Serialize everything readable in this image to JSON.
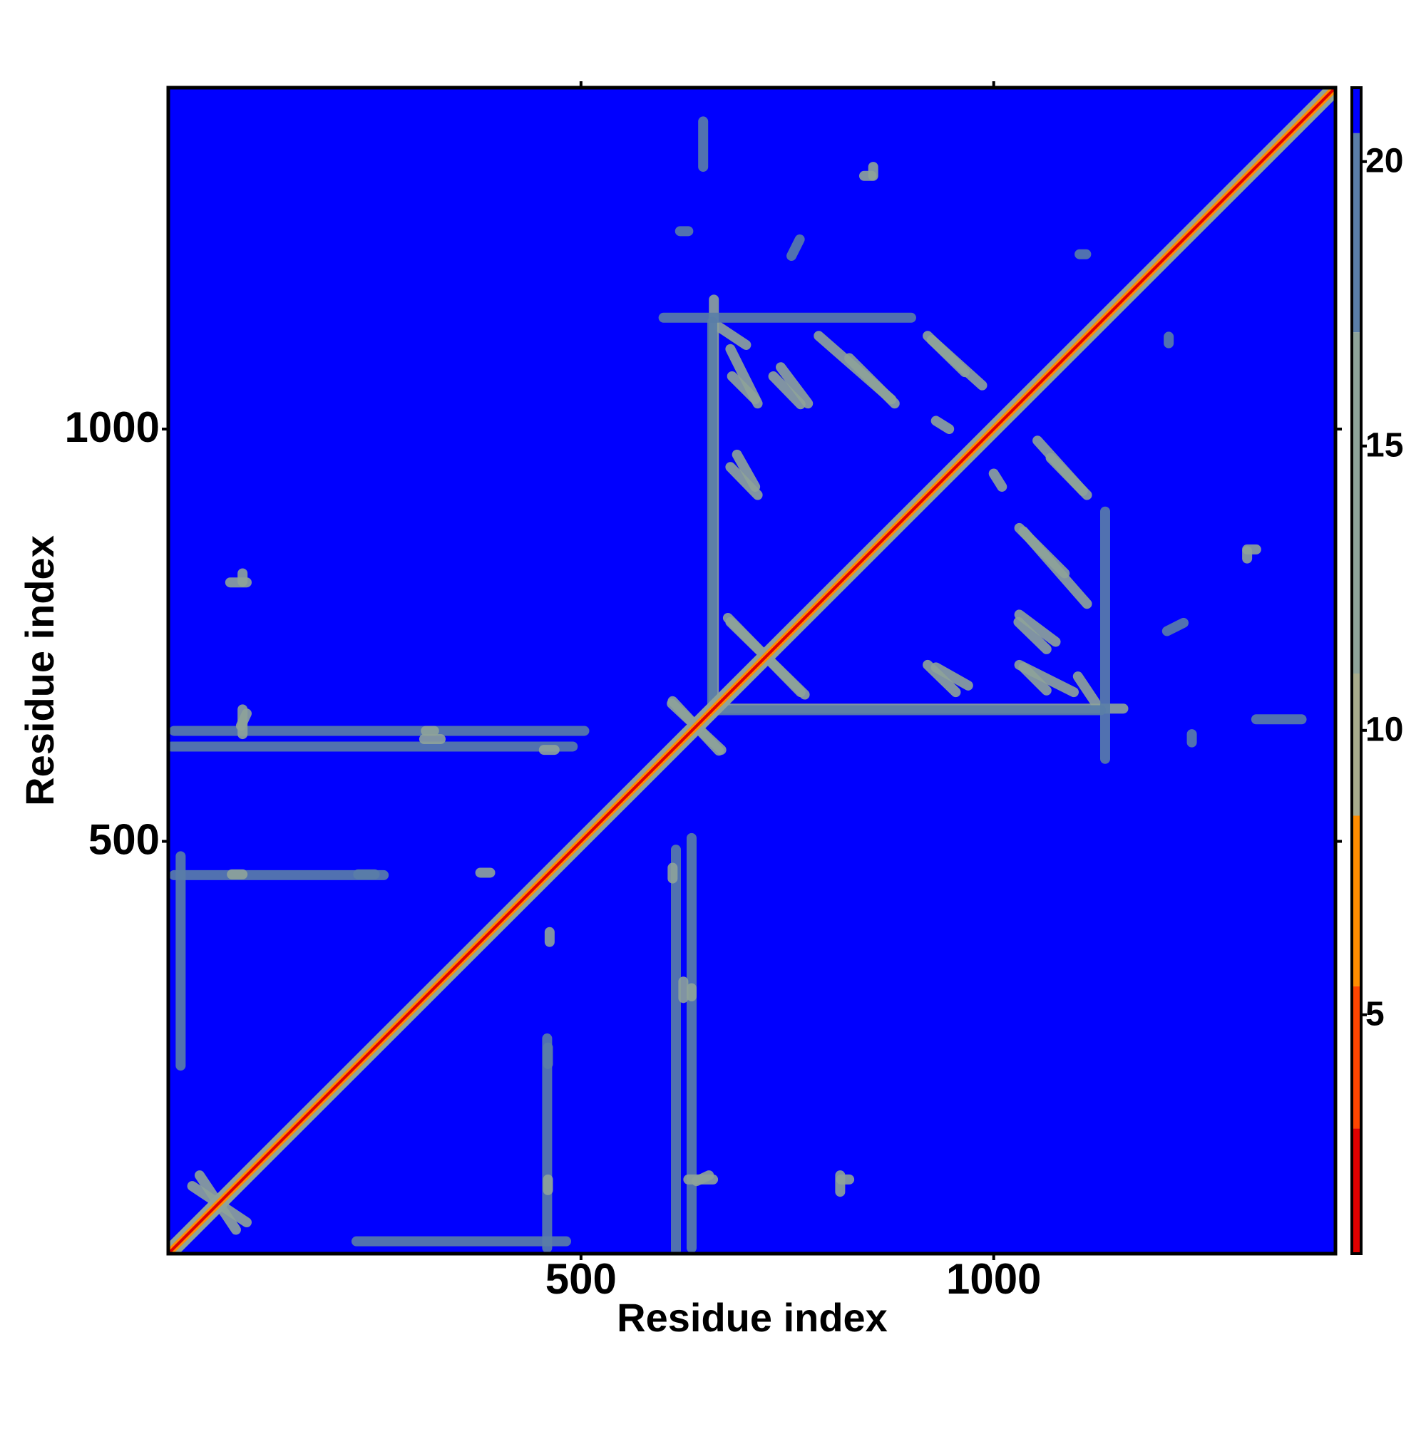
{
  "chart_data": {
    "type": "heatmap",
    "x_label": "Residue index",
    "y_label": "Residue index",
    "xlim": [
      0,
      1414
    ],
    "ylim": [
      0,
      1414
    ],
    "xticks": [
      500,
      1000
    ],
    "yticks": [
      500,
      1000
    ],
    "background": 21,
    "clim": [
      0.8,
      21.3
    ],
    "cticks": [
      5,
      10,
      15,
      20
    ],
    "colorscale": [
      {
        "value": 0.8,
        "color": "#e00000"
      },
      {
        "value": 3,
        "color": "#ff4500"
      },
      {
        "value": 5.5,
        "color": "#ff8c00"
      },
      {
        "value": 8.5,
        "color": "#a8ab8c"
      },
      {
        "value": 11,
        "color": "#8ea39a"
      },
      {
        "value": 17,
        "color": "#5a7ea8"
      },
      {
        "value": 20.5,
        "color": "#0000ff"
      }
    ],
    "diagonal": {
      "range": [
        0,
        1414
      ],
      "values": [
        13,
        6,
        1
      ]
    },
    "contacts": [
      {
        "x": [
          681,
          771
        ],
        "y": [
          766,
          678
        ],
        "value": 12
      },
      {
        "x": [
          610,
          670
        ],
        "y": [
          667,
          611
        ],
        "value": 12
      },
      {
        "x": [
          29,
          95
        ],
        "y": [
          82,
          38
        ],
        "value": 13
      },
      {
        "x": [
          681,
          714
        ],
        "y": [
          1097,
          1031
        ],
        "value": 13
      },
      {
        "x": [
          742,
          775
        ],
        "y": [
          1075,
          1031
        ],
        "value": 13
      },
      {
        "x": [
          825,
          880
        ],
        "y": [
          1086,
          1031
        ],
        "value": 14
      },
      {
        "x": [
          925,
          986
        ],
        "y": [
          1108,
          1053
        ],
        "value": 13
      },
      {
        "x": [
          1069,
          1113
        ],
        "y": [
          965,
          920
        ],
        "value": 13
      },
      {
        "x": [
          1036,
          1113
        ],
        "y": [
          876,
          788
        ],
        "value": 14
      },
      {
        "x": [
          1030,
          1064
        ],
        "y": [
          766,
          733
        ],
        "value": 14
      },
      {
        "x": [
          1036,
          1064
        ],
        "y": [
          711,
          683
        ],
        "value": 13
      },
      {
        "x": [
          1102,
          1124
        ],
        "y": [
          700,
          667
        ],
        "value": 15
      },
      {
        "x": [
          681,
          714
        ],
        "y": [
          954,
          920
        ],
        "value": 14
      },
      {
        "x": [
          930,
          969
        ],
        "y": [
          711,
          689
        ],
        "value": 14
      },
      {
        "x": [
          659,
          1157
        ],
        "y": [
          661,
          661
        ],
        "value": 16
      },
      {
        "x": [
          659,
          659
        ],
        "y": [
          656,
          1130
        ],
        "value": 17
      },
      {
        "x": [
          1135,
          1135
        ],
        "y": [
          600,
          900
        ],
        "value": 18
      },
      {
        "x": [
          7,
          504
        ],
        "y": [
          634,
          634
        ],
        "value": 17
      },
      {
        "x": [
          90,
          90
        ],
        "y": [
          815,
          825
        ],
        "value": 14
      },
      {
        "x": [
          88,
          95
        ],
        "y": [
          640,
          655
        ],
        "value": 14
      },
      {
        "x": [
          615,
          615
        ],
        "y": [
          4,
          490
        ],
        "value": 18
      },
      {
        "x": [
          228,
          482
        ],
        "y": [
          15,
          15
        ],
        "value": 17
      },
      {
        "x": [
          7,
          261
        ],
        "y": [
          459,
          459
        ],
        "value": 17
      },
      {
        "x": [
          648,
          648
        ],
        "y": [
          1318,
          1373
        ],
        "value": 18
      },
      {
        "x": [
          620,
          630
        ],
        "y": [
          1240,
          1240
        ],
        "value": 17
      },
      {
        "x": [
          843,
          852
        ],
        "y": [
          1307,
          1307
        ],
        "value": 16
      },
      {
        "x": [
          460,
          460
        ],
        "y": [
          77,
          90
        ],
        "value": 16
      },
      {
        "x": [
          814,
          814
        ],
        "y": [
          75,
          95
        ],
        "value": 16
      },
      {
        "x": [
          1307,
          1318
        ],
        "y": [
          854,
          854
        ],
        "value": 16
      },
      {
        "x": [
          1212,
          1212
        ],
        "y": [
          1104,
          1112
        ],
        "value": 17
      },
      {
        "x": [
          312,
          322
        ],
        "y": [
          634,
          634
        ],
        "value": 14
      },
      {
        "x": [
          455,
          468
        ],
        "y": [
          611,
          611
        ],
        "value": 15
      },
      {
        "x": [
          378,
          390
        ],
        "y": [
          462,
          462
        ],
        "value": 14
      },
      {
        "x": [
          460,
          460
        ],
        "y": [
          230,
          250
        ],
        "value": 17
      },
      {
        "x": [
          624,
          624
        ],
        "y": [
          310,
          330
        ],
        "value": 15
      },
      {
        "x": [
          630,
          660
        ],
        "y": [
          90,
          90
        ],
        "value": 15
      },
      {
        "x": [
          1000,
          1010
        ],
        "y": [
          946,
          930
        ],
        "value": 14
      },
      {
        "x": [
          755,
          765
        ],
        "y": [
          1210,
          1230
        ],
        "value": 17
      }
    ]
  }
}
